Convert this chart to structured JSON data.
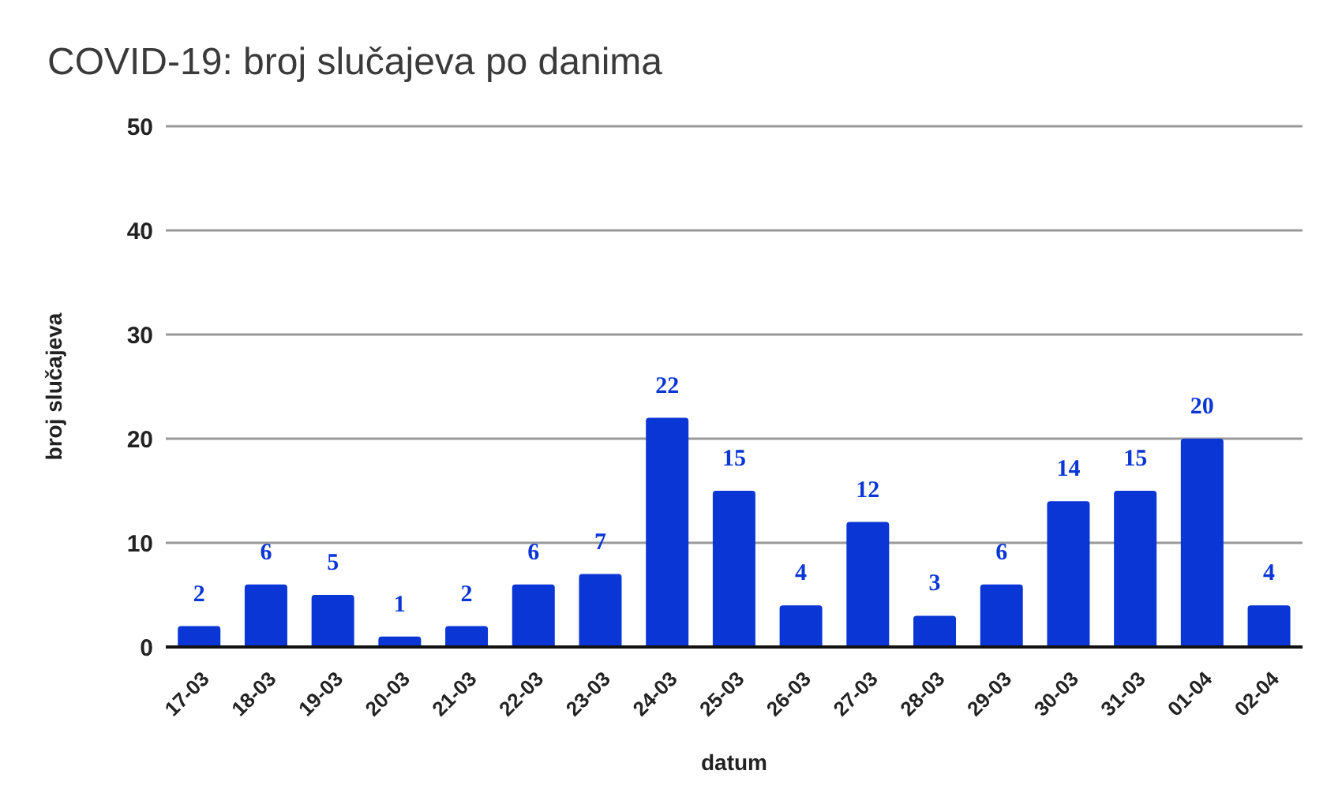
{
  "chart_data": {
    "type": "bar",
    "title": "COVID-19: broj slučajeva po danima",
    "xlabel": "datum",
    "ylabel": "broj slučajeva",
    "categories": [
      "17-03",
      "18-03",
      "19-03",
      "20-03",
      "21-03",
      "22-03",
      "23-03",
      "24-03",
      "25-03",
      "26-03",
      "27-03",
      "28-03",
      "29-03",
      "30-03",
      "31-03",
      "01-04",
      "02-04"
    ],
    "values": [
      2,
      6,
      5,
      1,
      2,
      6,
      7,
      22,
      15,
      4,
      12,
      3,
      6,
      14,
      15,
      20,
      4
    ],
    "color": "#0b36d6",
    "ylim": [
      0,
      50
    ],
    "yticks": [
      0,
      10,
      20,
      30,
      40,
      50
    ],
    "grid": "y",
    "data_labels": true
  }
}
